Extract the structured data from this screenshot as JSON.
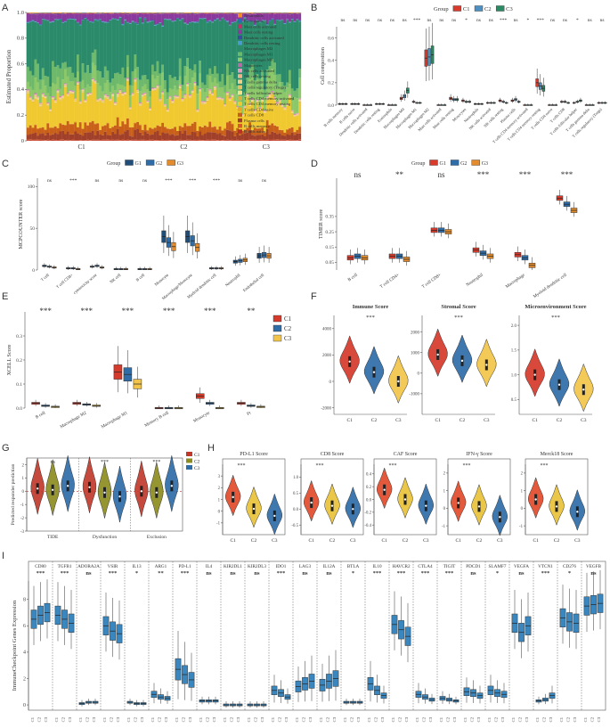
{
  "colors": {
    "c1": "#d63a2a",
    "c2": "#2f6da8",
    "c3": "#f2c54a",
    "b_c1": "#d93a2b",
    "b_c2": "#4c8fc0",
    "b_c3": "#2b8a63",
    "c_c1": "#1f4e7a",
    "c_c2": "#2f6da8",
    "c_c3": "#e38c2d",
    "g_c1": "#c0392b",
    "g_c2": "#8c8c1f",
    "g_c3": "#2f6da8",
    "h_c1": "#e24b2a",
    "h_c2": "#e8c23a",
    "h_c3": "#2f6da8"
  },
  "panels": {
    "A": "A",
    "B": "B",
    "C": "C",
    "D": "D",
    "E": "E",
    "F": "F",
    "G": "G",
    "H": "H",
    "I": "I"
  },
  "chart_data": [
    {
      "id": "A",
      "type": "area",
      "ylabel": "Estimated Proportion",
      "y_ticks": [
        "0",
        "0.2",
        "0.4",
        "0.6",
        "0.8",
        "1.0"
      ],
      "ylim": [
        0,
        1
      ],
      "groups": [
        "C1",
        "C2",
        "C3"
      ],
      "legend": [
        {
          "name": "Neutrophils",
          "color": "#f08a24"
        },
        {
          "name": "Eosinophils",
          "color": "#2a6eb0"
        },
        {
          "name": "Mast cells activated",
          "color": "#c0306a"
        },
        {
          "name": "Mast cells resting",
          "color": "#8a3a9c"
        },
        {
          "name": "Dendritic cells activated",
          "color": "#3a4c9e"
        },
        {
          "name": "Dendritic cells resting",
          "color": "#4a9ad0"
        },
        {
          "name": "Macrophages M2",
          "color": "#2a8a6a"
        },
        {
          "name": "Macrophages M1",
          "color": "#6db86a"
        },
        {
          "name": "Macrophages M0",
          "color": "#8cc86a"
        },
        {
          "name": "Monocytes",
          "color": "#b86aa8"
        },
        {
          "name": "NK cells activated",
          "color": "#e89ac0"
        },
        {
          "name": "NK cells resting",
          "color": "#f4b088"
        },
        {
          "name": "T cells gamma delta",
          "color": "#f2d08a"
        },
        {
          "name": "T cells regulatory (Tregs)",
          "color": "#e8c060"
        },
        {
          "name": "T cells follicular helper",
          "color": "#f5e08a"
        },
        {
          "name": "T cells CD4 memory activated",
          "color": "#d8b040"
        },
        {
          "name": "T cells CD4 memory resting",
          "color": "#f0c830"
        },
        {
          "name": "T cells CD4 naive",
          "color": "#e8a828"
        },
        {
          "name": "T cells CD8",
          "color": "#c8601a"
        },
        {
          "name": "Plasma cells",
          "color": "#a0402a"
        },
        {
          "name": "B cells memory",
          "color": "#d85a2a"
        },
        {
          "name": "B cells naive",
          "color": "#b8302a"
        }
      ],
      "mean_proportions_by_group": {
        "C1": {
          "T cells CD4 memory resting": 0.22,
          "T cells CD8": 0.06,
          "Plasma cells": 0.05,
          "Macrophages M2": 0.38,
          "Macrophages M1": 0.1,
          "Macrophages M0": 0.08,
          "Mast cells resting": 0.05,
          "Other": 0.06
        },
        "C2": {
          "T cells CD4 memory resting": 0.2,
          "T cells CD8": 0.05,
          "Plasma cells": 0.05,
          "Macrophages M2": 0.42,
          "Macrophages M1": 0.08,
          "Macrophages M0": 0.09,
          "Mast cells resting": 0.05,
          "Other": 0.06
        },
        "C3": {
          "T cells CD4 memory resting": 0.16,
          "T cells CD8": 0.04,
          "Plasma cells": 0.05,
          "Macrophages M2": 0.45,
          "Macrophages M1": 0.07,
          "Macrophages M0": 0.12,
          "Mast cells resting": 0.05,
          "Other": 0.06
        }
      }
    },
    {
      "id": "B",
      "type": "box",
      "ylabel": "Cell composition",
      "legend_title": "Group",
      "series": [
        "C1",
        "C2",
        "C3"
      ],
      "y_ticks": [
        "0.0",
        "0.2",
        "0.4",
        "0.6"
      ],
      "ylim": [
        0,
        0.7
      ],
      "categories": [
        "B cells memory",
        "B cells naive",
        "Dendritic cells activated",
        "Dendritic cells resting",
        "Eosinophils",
        "Macrophages M0",
        "Macrophages M1",
        "Macrophages M2",
        "Mast cells activated",
        "Mast cells resting",
        "Monocytes",
        "Neutrophils",
        "NK cells activated",
        "NK cells resting",
        "Plasma cells",
        "T cells CD4 memory activated",
        "T cells CD4 memory resting",
        "T cells CD4 naive",
        "T cells CD8",
        "T cells follicular helper",
        "T cells gamma delta",
        "T cells regulatory (Tregs)"
      ],
      "significance": [
        "ns",
        "ns",
        "ns",
        "ns",
        "ns",
        "ns",
        "***",
        "ns",
        "ns",
        "ns",
        "*",
        "ns",
        "ns",
        "***",
        "ns",
        "*",
        "***",
        "ns",
        "ns",
        "*",
        "ns",
        "ns"
      ],
      "medians": [
        [
          0.01,
          0.01,
          0.01
        ],
        [
          0.01,
          0.01,
          0.01
        ],
        [
          0.0,
          0.0,
          0.0
        ],
        [
          0.01,
          0.01,
          0.01
        ],
        [
          0.0,
          0.0,
          0.0
        ],
        [
          0.06,
          0.08,
          0.13
        ],
        [
          0.03,
          0.02,
          0.02
        ],
        [
          0.42,
          0.43,
          0.45
        ],
        [
          0.0,
          0.0,
          0.0
        ],
        [
          0.06,
          0.05,
          0.05
        ],
        [
          0.04,
          0.03,
          0.03
        ],
        [
          0.01,
          0.01,
          0.01
        ],
        [
          0.02,
          0.02,
          0.02
        ],
        [
          0.04,
          0.03,
          0.02
        ],
        [
          0.04,
          0.05,
          0.03
        ],
        [
          0.0,
          0.0,
          0.0
        ],
        [
          0.2,
          0.17,
          0.15
        ],
        [
          0.0,
          0.0,
          0.0
        ],
        [
          0.03,
          0.03,
          0.02
        ],
        [
          0.02,
          0.03,
          0.04
        ],
        [
          0.0,
          0.0,
          0.0
        ],
        [
          0.02,
          0.02,
          0.02
        ]
      ]
    },
    {
      "id": "C",
      "type": "box",
      "ylabel": "MCPCOUNTER score",
      "legend_title": "Group",
      "series": [
        "G1",
        "G2",
        "G3"
      ],
      "y_ticks": [
        "0",
        "50",
        "100"
      ],
      "ylim": [
        0,
        110
      ],
      "categories": [
        "T cell",
        "T cell CD8+",
        "cytotoxicity score",
        "NK cell",
        "B cell",
        "Monocyte",
        "Macrophage/Monocyte",
        "Myeloid dendritic cell",
        "Neutrophil",
        "Endothelial cell"
      ],
      "significance": [
        "ns",
        "***",
        "ns",
        "ns",
        "ns",
        "***",
        "***",
        "***",
        "ns",
        "ns"
      ],
      "medians": [
        [
          5,
          4,
          3
        ],
        [
          2,
          2,
          1
        ],
        [
          4,
          5,
          3
        ],
        [
          1,
          1,
          1
        ],
        [
          1,
          1,
          1
        ],
        [
          40,
          33,
          28
        ],
        [
          40,
          35,
          27
        ],
        [
          2,
          2,
          2
        ],
        [
          10,
          11,
          12
        ],
        [
          17,
          18,
          17
        ]
      ]
    },
    {
      "id": "D",
      "type": "box",
      "ylabel": "TIMER score",
      "legend_title": "Group",
      "series": [
        "G1",
        "G2",
        "G3"
      ],
      "y_ticks": [
        "0.05",
        "0.15",
        "0.25",
        "0.35"
      ],
      "ylim": [
        0,
        0.6
      ],
      "categories": [
        "B cell",
        "T cell CD4+",
        "T cell CD8+",
        "Neutrophil",
        "Macrophage",
        "Myeloid dendritic cell"
      ],
      "significance": [
        "ns",
        "**",
        "ns",
        "***",
        "***",
        "***"
      ],
      "medians": [
        [
          0.08,
          0.09,
          0.08
        ],
        [
          0.09,
          0.09,
          0.07
        ],
        [
          0.26,
          0.26,
          0.25
        ],
        [
          0.13,
          0.11,
          0.09
        ],
        [
          0.1,
          0.08,
          0.03
        ],
        [
          0.47,
          0.43,
          0.39
        ]
      ]
    },
    {
      "id": "E",
      "type": "box",
      "ylabel": "XCELL Score",
      "series": [
        "C1",
        "C2",
        "C3"
      ],
      "y_ticks": [
        "0.0",
        "0.1",
        "0.2",
        "0.3"
      ],
      "ylim": [
        0,
        0.4
      ],
      "categories": [
        "B cell",
        "Macrophage M2",
        "Macrophage M1",
        "Memory B cell",
        "Monocyte",
        "Pt"
      ],
      "significance": [
        "***",
        "***",
        "***",
        "***",
        "***",
        "**"
      ],
      "medians": [
        [
          0.02,
          0.01,
          0.005
        ],
        [
          0.02,
          0.015,
          0.01
        ],
        [
          0.15,
          0.14,
          0.1
        ],
        [
          0.0,
          0.0,
          0.0
        ],
        [
          0.05,
          0.02,
          0.0
        ],
        [
          0.02,
          0.01,
          0.005
        ]
      ]
    },
    {
      "id": "F",
      "type": "violin",
      "panels": [
        {
          "title": "Immune Score",
          "sig": "***",
          "y_ticks": [
            "-2000",
            "0",
            "2000",
            "4000"
          ],
          "ylim": [
            -2500,
            5000
          ],
          "medians": [
            1500,
            700,
            0
          ]
        },
        {
          "title": "Stromal Score",
          "sig": "***",
          "y_ticks": [
            "-1000",
            "0",
            "1000",
            "2000"
          ],
          "ylim": [
            -2000,
            2800
          ],
          "medians": [
            900,
            600,
            400
          ]
        },
        {
          "title": "Microenvironment Score",
          "sig": "***",
          "y_ticks": [
            "0.5",
            "1.0",
            "1.5",
            "2.0"
          ],
          "ylim": [
            0.2,
            2.2
          ],
          "medians": [
            1.0,
            0.8,
            0.7
          ]
        }
      ],
      "groups": [
        "C1",
        "C2",
        "C3"
      ]
    },
    {
      "id": "G",
      "type": "violin",
      "ylabel": "Predicted responder prediction",
      "series": [
        "C1",
        "C2",
        "C3"
      ],
      "y_ticks": [
        "-3",
        "-2",
        "-1",
        "0",
        "1",
        "2"
      ],
      "ylim": [
        -3,
        2.5
      ],
      "categories": [
        "TIDE",
        "Dysfunction",
        "Exclusion"
      ],
      "significance": [
        "ns",
        "***",
        "***"
      ],
      "medians": [
        [
          0.2,
          0.1,
          0.4
        ],
        [
          0.3,
          -0.1,
          -0.4
        ],
        [
          0.0,
          -0.1,
          0.4
        ]
      ]
    },
    {
      "id": "H",
      "type": "violin",
      "panels": [
        {
          "title": "PD-L1 Score",
          "sig": "***",
          "y_ticks": [
            "-1",
            "0",
            "1",
            "2",
            "3"
          ],
          "ylim": [
            -2,
            4
          ],
          "medians": [
            1.2,
            0.2,
            -0.4
          ]
        },
        {
          "title": "CD8 Score",
          "sig": "***",
          "y_ticks": [
            "-0.5",
            "0.0",
            "0.5",
            "1.0"
          ],
          "ylim": [
            -0.8,
            1.4
          ],
          "medians": [
            0.2,
            0.1,
            0.0
          ]
        },
        {
          "title": "CAF Score",
          "sig": "***",
          "y_ticks": [
            "-0.4",
            "-0.2",
            "0.0",
            "0.2",
            "0.4"
          ],
          "ylim": [
            -0.55,
            0.55
          ],
          "medians": [
            0.15,
            0.0,
            -0.1
          ]
        },
        {
          "title": "IFN-γ Score",
          "sig": "***",
          "y_ticks": [
            "-1",
            "0",
            "1",
            "2"
          ],
          "ylim": [
            -1.5,
            2.5
          ],
          "medians": [
            0.3,
            0.1,
            -0.5
          ]
        },
        {
          "title": "Merck18 Score",
          "sig": "***",
          "y_ticks": [
            "-1",
            "0",
            "1",
            "2"
          ],
          "ylim": [
            -1.5,
            2.5
          ],
          "medians": [
            0.5,
            0.1,
            -0.2
          ]
        }
      ],
      "groups": [
        "C1",
        "C2",
        "C3"
      ]
    },
    {
      "id": "I",
      "type": "box",
      "ylabel": "ImmuneCheckpoint Genes Expression",
      "series": [
        "C1",
        "C2",
        "C3"
      ],
      "y_ticks": [
        "0",
        "2",
        "4",
        "6",
        "8"
      ],
      "ylim": [
        -0.4,
        9.4
      ],
      "categories": [
        "CD80",
        "TGFB1",
        "ADORA2A",
        "VSIR",
        "IL13",
        "ARG1",
        "PD-L1",
        "IL4",
        "KIR2DL1",
        "KIR2DL3",
        "IDO1",
        "LAG3",
        "IL12A",
        "BTLA",
        "IL10",
        "HAVCR2",
        "CTLA4",
        "TIGIT",
        "PDCD1",
        "SLAMF7",
        "VEGFA",
        "VTCN1",
        "CD276",
        "VEGFB"
      ],
      "significance": [
        "***",
        "***",
        "ns",
        "***",
        "*",
        "**",
        "***",
        "ns",
        "ns",
        "ns",
        "***",
        "ns",
        "ns",
        "*",
        "***",
        "***",
        "***",
        "***",
        "ns",
        "*",
        "ns",
        "***",
        "*",
        "ns"
      ],
      "medians": [
        [
          6.5,
          6.8,
          7.0
        ],
        [
          6.8,
          6.5,
          6.2
        ],
        [
          0.1,
          0.2,
          0.2
        ],
        [
          6.0,
          5.6,
          5.4
        ],
        [
          0.2,
          0.1,
          0.1
        ],
        [
          0.8,
          0.6,
          0.5
        ],
        [
          2.7,
          2.3,
          1.9
        ],
        [
          0.3,
          0.3,
          0.3
        ],
        [
          0.0,
          0.0,
          0.0
        ],
        [
          0.0,
          0.0,
          0.0
        ],
        [
          1.1,
          0.9,
          0.6
        ],
        [
          1.4,
          1.6,
          1.8
        ],
        [
          1.5,
          1.8,
          2.0
        ],
        [
          0.2,
          0.2,
          0.2
        ],
        [
          1.6,
          1.1,
          0.7
        ],
        [
          6.1,
          5.7,
          5.2
        ],
        [
          0.8,
          0.6,
          0.4
        ],
        [
          0.5,
          0.4,
          0.3
        ],
        [
          1.0,
          0.9,
          0.7
        ],
        [
          1.1,
          0.9,
          0.8
        ],
        [
          6.2,
          5.5,
          6.0
        ],
        [
          0.3,
          0.4,
          0.7
        ],
        [
          6.6,
          6.3,
          6.2
        ],
        [
          7.5,
          7.6,
          7.7
        ]
      ]
    }
  ]
}
